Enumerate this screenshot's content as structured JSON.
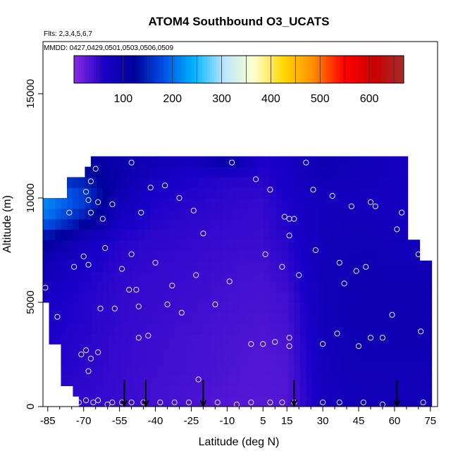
{
  "chart_data": {
    "type": "heatmap",
    "title": "ATOM4 Southbound O3_UCATS",
    "flights_note": "Flts: 2,3,4,5,6,7",
    "dates_note": "MMDD: 0427,0429,0501,0503,0506,0509",
    "xlabel": "Latitude (deg N)",
    "ylabel": "Altitude (m)",
    "xlim": [
      -87,
      78
    ],
    "ylim": [
      0,
      17500
    ],
    "x_ticks": [
      -85,
      -70,
      -55,
      -40,
      -25,
      -10,
      5,
      15,
      30,
      45,
      60,
      75
    ],
    "x_tick_labels": [
      "-85",
      "-70",
      "-55",
      "-40",
      "-25",
      "-10",
      "5",
      "15",
      "30",
      "45",
      "60",
      "75"
    ],
    "y_ticks": [
      0,
      5000,
      10000,
      15000
    ],
    "y_tick_labels": [
      "0",
      "5000",
      "10000",
      "15000"
    ],
    "colorbar": {
      "min": 0,
      "max": 670,
      "ticks": [
        100,
        200,
        300,
        400,
        500,
        600
      ],
      "tick_labels": [
        "100",
        "200",
        "300",
        "400",
        "500",
        "600"
      ],
      "colors": [
        "#8a2be2",
        "#1a00c8",
        "#00009a",
        "#0050e6",
        "#00b4ff",
        "#b8e6ff",
        "#ffffd0",
        "#ffd700",
        "#ff8c00",
        "#ff0000",
        "#cc0000",
        "#a52a2a"
      ]
    },
    "ozone_field_ppb": {
      "lat": [
        -85,
        -70,
        -55,
        -40,
        -25,
        -10,
        5,
        15,
        30,
        45,
        60,
        72
      ],
      "alt": [
        0,
        1000,
        2000,
        3000,
        4000,
        5000,
        6000,
        7000,
        8000,
        9000,
        10000,
        11000,
        12000
      ],
      "values": [
        [
          55,
          50,
          45,
          40,
          35,
          30,
          28,
          30,
          70,
          80,
          80,
          80
        ],
        [
          55,
          50,
          45,
          40,
          36,
          32,
          30,
          32,
          72,
          82,
          82,
          82
        ],
        [
          58,
          52,
          46,
          42,
          38,
          34,
          30,
          33,
          74,
          85,
          85,
          85
        ],
        [
          60,
          52,
          46,
          42,
          38,
          34,
          32,
          35,
          76,
          88,
          88,
          88
        ],
        [
          62,
          55,
          48,
          44,
          40,
          36,
          33,
          38,
          80,
          90,
          90,
          90
        ],
        [
          65,
          55,
          48,
          45,
          42,
          38,
          35,
          40,
          80,
          90,
          90,
          90
        ],
        [
          75,
          58,
          50,
          46,
          44,
          40,
          37,
          45,
          82,
          90,
          88,
          88
        ],
        [
          85,
          65,
          52,
          48,
          46,
          42,
          40,
          50,
          82,
          88,
          85,
          85
        ],
        [
          120,
          75,
          55,
          50,
          48,
          45,
          44,
          55,
          80,
          85,
          80,
          80
        ],
        [
          200,
          140,
          70,
          55,
          50,
          48,
          46,
          58,
          78,
          80,
          75,
          75
        ],
        [
          220,
          175,
          85,
          60,
          55,
          50,
          48,
          60,
          75,
          75,
          72,
          72
        ],
        [
          160,
          140,
          100,
          70,
          60,
          55,
          55,
          65,
          85,
          80,
          75,
          75
        ],
        [
          120,
          110,
          95,
          90,
          80,
          120,
          60,
          65,
          95,
          85,
          75,
          75
        ]
      ]
    },
    "sample_points": [
      {
        "lat": -86,
        "alt": 5700
      },
      {
        "lat": -81,
        "alt": 4300
      },
      {
        "lat": -76,
        "alt": 9300
      },
      {
        "lat": -74,
        "alt": 6700
      },
      {
        "lat": -70,
        "alt": 7200
      },
      {
        "lat": -68,
        "alt": 6800
      },
      {
        "lat": -69,
        "alt": 10300
      },
      {
        "lat": -68,
        "alt": 9900
      },
      {
        "lat": -67,
        "alt": 9300
      },
      {
        "lat": -64,
        "alt": 9800
      },
      {
        "lat": -62,
        "alt": 9000
      },
      {
        "lat": -58,
        "alt": 9700
      },
      {
        "lat": -65,
        "alt": 11400
      },
      {
        "lat": -67,
        "alt": 10800
      },
      {
        "lat": -61,
        "alt": 7600
      },
      {
        "lat": -63,
        "alt": 4700
      },
      {
        "lat": -57,
        "alt": 4700
      },
      {
        "lat": -71,
        "alt": 2500
      },
      {
        "lat": -69,
        "alt": 2700
      },
      {
        "lat": -67,
        "alt": 2300
      },
      {
        "lat": -64,
        "alt": 2600
      },
      {
        "lat": -68,
        "alt": 1700
      },
      {
        "lat": -64,
        "alt": 300
      },
      {
        "lat": -66,
        "alt": 200
      },
      {
        "lat": -69,
        "alt": 300
      },
      {
        "lat": -72,
        "alt": 200
      },
      {
        "lat": -60,
        "alt": 100
      },
      {
        "lat": -58,
        "alt": 200
      },
      {
        "lat": -50,
        "alt": 11700
      },
      {
        "lat": -54,
        "alt": 6600
      },
      {
        "lat": -50,
        "alt": 7300
      },
      {
        "lat": -51,
        "alt": 5600
      },
      {
        "lat": -48,
        "alt": 5600
      },
      {
        "lat": -47,
        "alt": 4800
      },
      {
        "lat": -47,
        "alt": 3300
      },
      {
        "lat": -43,
        "alt": 3400
      },
      {
        "lat": -46,
        "alt": 9300
      },
      {
        "lat": -42,
        "alt": 10500
      },
      {
        "lat": -36,
        "alt": 10600
      },
      {
        "lat": -40,
        "alt": 6900
      },
      {
        "lat": -35,
        "alt": 4900
      },
      {
        "lat": -33,
        "alt": 5800
      },
      {
        "lat": -30,
        "alt": 10000
      },
      {
        "lat": -29,
        "alt": 4500
      },
      {
        "lat": -24,
        "alt": 9400
      },
      {
        "lat": -23,
        "alt": 6300
      },
      {
        "lat": -20,
        "alt": 8300
      },
      {
        "lat": -22,
        "alt": 1300
      },
      {
        "lat": -15,
        "alt": 4900
      },
      {
        "lat": -9,
        "alt": 6000
      },
      {
        "lat": -8,
        "alt": 11700
      },
      {
        "lat": -6,
        "alt": 100
      },
      {
        "lat": 2,
        "alt": 10900
      },
      {
        "lat": 6,
        "alt": 7300
      },
      {
        "lat": 8,
        "alt": 10400
      },
      {
        "lat": 0,
        "alt": 3000
      },
      {
        "lat": 5,
        "alt": 3000
      },
      {
        "lat": 10,
        "alt": 3100
      },
      {
        "lat": 13,
        "alt": 6700
      },
      {
        "lat": 14,
        "alt": 9100
      },
      {
        "lat": 16,
        "alt": 9000
      },
      {
        "lat": 18,
        "alt": 9000
      },
      {
        "lat": 16,
        "alt": 8200
      },
      {
        "lat": 16,
        "alt": 3300
      },
      {
        "lat": 16,
        "alt": 2900
      },
      {
        "lat": 20,
        "alt": 6300
      },
      {
        "lat": 23,
        "alt": 11700
      },
      {
        "lat": 27,
        "alt": 7500
      },
      {
        "lat": 26,
        "alt": 10400
      },
      {
        "lat": 30,
        "alt": 3000
      },
      {
        "lat": 34,
        "alt": 10100
      },
      {
        "lat": 37,
        "alt": 6900
      },
      {
        "lat": 39,
        "alt": 5900
      },
      {
        "lat": 36,
        "alt": 3500
      },
      {
        "lat": 42,
        "alt": 9600
      },
      {
        "lat": 44,
        "alt": 6500
      },
      {
        "lat": 45,
        "alt": 2900
      },
      {
        "lat": 48,
        "alt": 6700
      },
      {
        "lat": 50,
        "alt": 9800
      },
      {
        "lat": 52,
        "alt": 9600
      },
      {
        "lat": 50,
        "alt": 3300
      },
      {
        "lat": 55,
        "alt": 3300
      },
      {
        "lat": 59,
        "alt": 4400
      },
      {
        "lat": 61,
        "alt": 8500
      },
      {
        "lat": 63,
        "alt": 9300
      },
      {
        "lat": 70,
        "alt": 7300
      },
      {
        "lat": 71,
        "alt": 3600
      },
      {
        "lat": 72,
        "alt": 200
      },
      {
        "lat": -54,
        "alt": 200
      },
      {
        "lat": -50,
        "alt": 200
      },
      {
        "lat": -45,
        "alt": 200
      },
      {
        "lat": -38,
        "alt": 200
      },
      {
        "lat": -32,
        "alt": 200
      },
      {
        "lat": -26,
        "alt": 200
      },
      {
        "lat": -14,
        "alt": 200
      },
      {
        "lat": 0,
        "alt": 200
      },
      {
        "lat": 8,
        "alt": 200
      },
      {
        "lat": 13,
        "alt": 200
      },
      {
        "lat": 18,
        "alt": 200
      },
      {
        "lat": 30,
        "alt": 200
      },
      {
        "lat": 37,
        "alt": 200
      },
      {
        "lat": 47,
        "alt": 200
      },
      {
        "lat": 55,
        "alt": 100
      }
    ],
    "profile_markers_lat": [
      -53,
      -44,
      -20,
      18,
      61
    ]
  }
}
